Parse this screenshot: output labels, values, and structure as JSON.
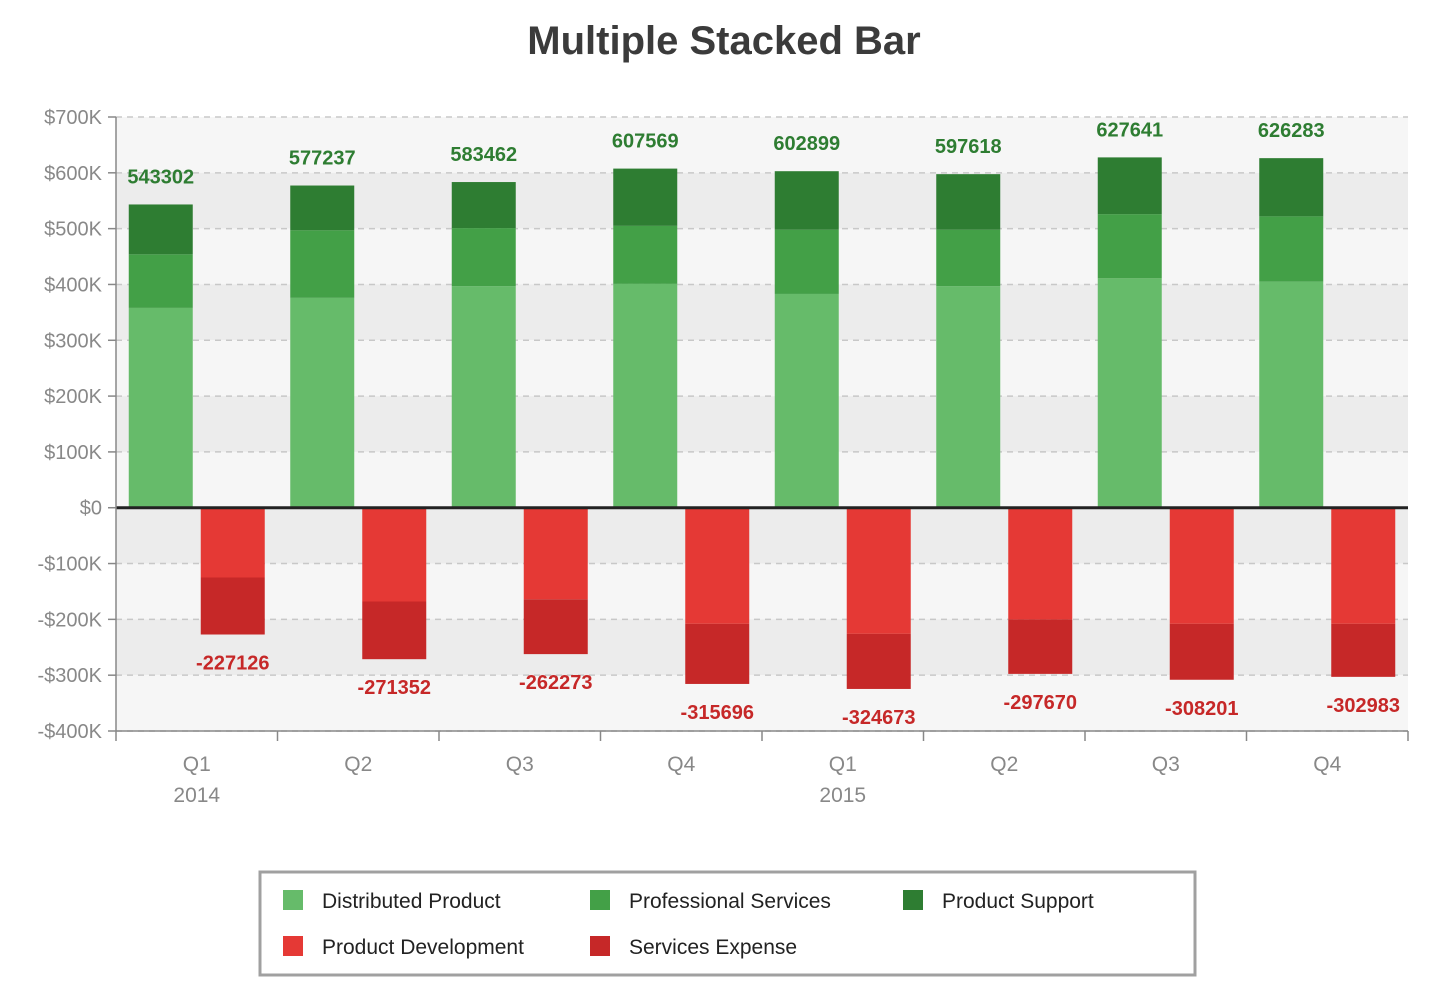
{
  "chart_data": {
    "type": "bar",
    "stacked": true,
    "title": "Multiple Stacked Bar",
    "categories": [
      "Q1",
      "Q2",
      "Q3",
      "Q4",
      "Q1",
      "Q2",
      "Q3",
      "Q4"
    ],
    "groups": [
      {
        "label": "2014",
        "start_index": 0
      },
      {
        "label": "2015",
        "start_index": 4
      }
    ],
    "ylim": [
      -400000,
      700000
    ],
    "y_ticks": [
      700000,
      600000,
      500000,
      400000,
      300000,
      200000,
      100000,
      0,
      -100000,
      -200000,
      -300000,
      -400000
    ],
    "y_tick_labels": [
      "$700K",
      "$600K",
      "$500K",
      "$400K",
      "$300K",
      "$200K",
      "$100K",
      "$0",
      "-$100K",
      "-$200K",
      "-$300K",
      "-$400K"
    ],
    "grid": true,
    "legend_position": "bottom",
    "stacks": [
      {
        "name": "revenue",
        "series": [
          {
            "name": "Distributed Product",
            "color": "#66bb6a",
            "values": [
              358000,
              376000,
              397000,
              401000,
              383000,
              397000,
              411000,
              405000
            ]
          },
          {
            "name": "Professional Services",
            "color": "#43a047",
            "values": [
              96000,
              121000,
              104000,
              104000,
              115000,
              101000,
              115000,
              117000
            ]
          },
          {
            "name": "Product Support",
            "color": "#2e7d32",
            "values": [
              89302,
              80237,
              82462,
              102569,
              104899,
              99618,
              101641,
              104283
            ]
          }
        ],
        "totals": [
          "543302",
          "577237",
          "583462",
          "607569",
          "602899",
          "597618",
          "627641",
          "626283"
        ],
        "label_color": "#2e7d32"
      },
      {
        "name": "expense",
        "series": [
          {
            "name": "Product Development",
            "color": "#e53935",
            "values": [
              -125000,
              -168000,
              -164000,
              -208000,
              -226000,
              -200000,
              -208000,
              -208000
            ]
          },
          {
            "name": "Services Expense",
            "color": "#c62828",
            "values": [
              -102126,
              -103352,
              -98273,
              -107696,
              -98673,
              -97670,
              -100201,
              -94983
            ]
          }
        ],
        "totals": [
          "-227126",
          "-271352",
          "-262273",
          "-315696",
          "-324673",
          "-297670",
          "-308201",
          "-302983"
        ],
        "label_color": "#c62828"
      }
    ],
    "legend": [
      {
        "name": "Distributed Product",
        "color": "#66bb6a"
      },
      {
        "name": "Professional Services",
        "color": "#43a047"
      },
      {
        "name": "Product Support",
        "color": "#2e7d32"
      },
      {
        "name": "Product Development",
        "color": "#e53935"
      },
      {
        "name": "Services Expense",
        "color": "#c62828"
      }
    ]
  }
}
